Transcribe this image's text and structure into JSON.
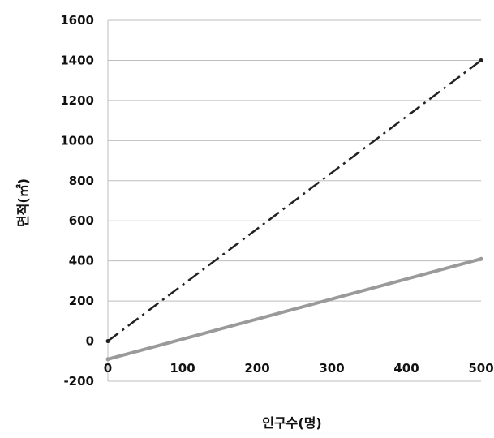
{
  "chart_data": {
    "type": "line",
    "xlabel": "인구수(명)",
    "ylabel": "면적(㎡)",
    "x_ticks": [
      "0",
      "100",
      "200",
      "300",
      "400",
      "500"
    ],
    "y_ticks": [
      "-200",
      "0",
      "200",
      "400",
      "600",
      "800",
      "1000",
      "1200",
      "1400",
      "1600"
    ],
    "xlim": [
      0,
      500
    ],
    "ylim": [
      -200,
      1600
    ],
    "grid": "horizontal",
    "series": [
      {
        "style": "dash-dot",
        "color": "#222222",
        "x": [
          0,
          500
        ],
        "y": [
          0,
          1400
        ]
      },
      {
        "style": "solid",
        "color": "#9a9a9a",
        "x": [
          0,
          500
        ],
        "y": [
          -90,
          410
        ]
      }
    ]
  }
}
